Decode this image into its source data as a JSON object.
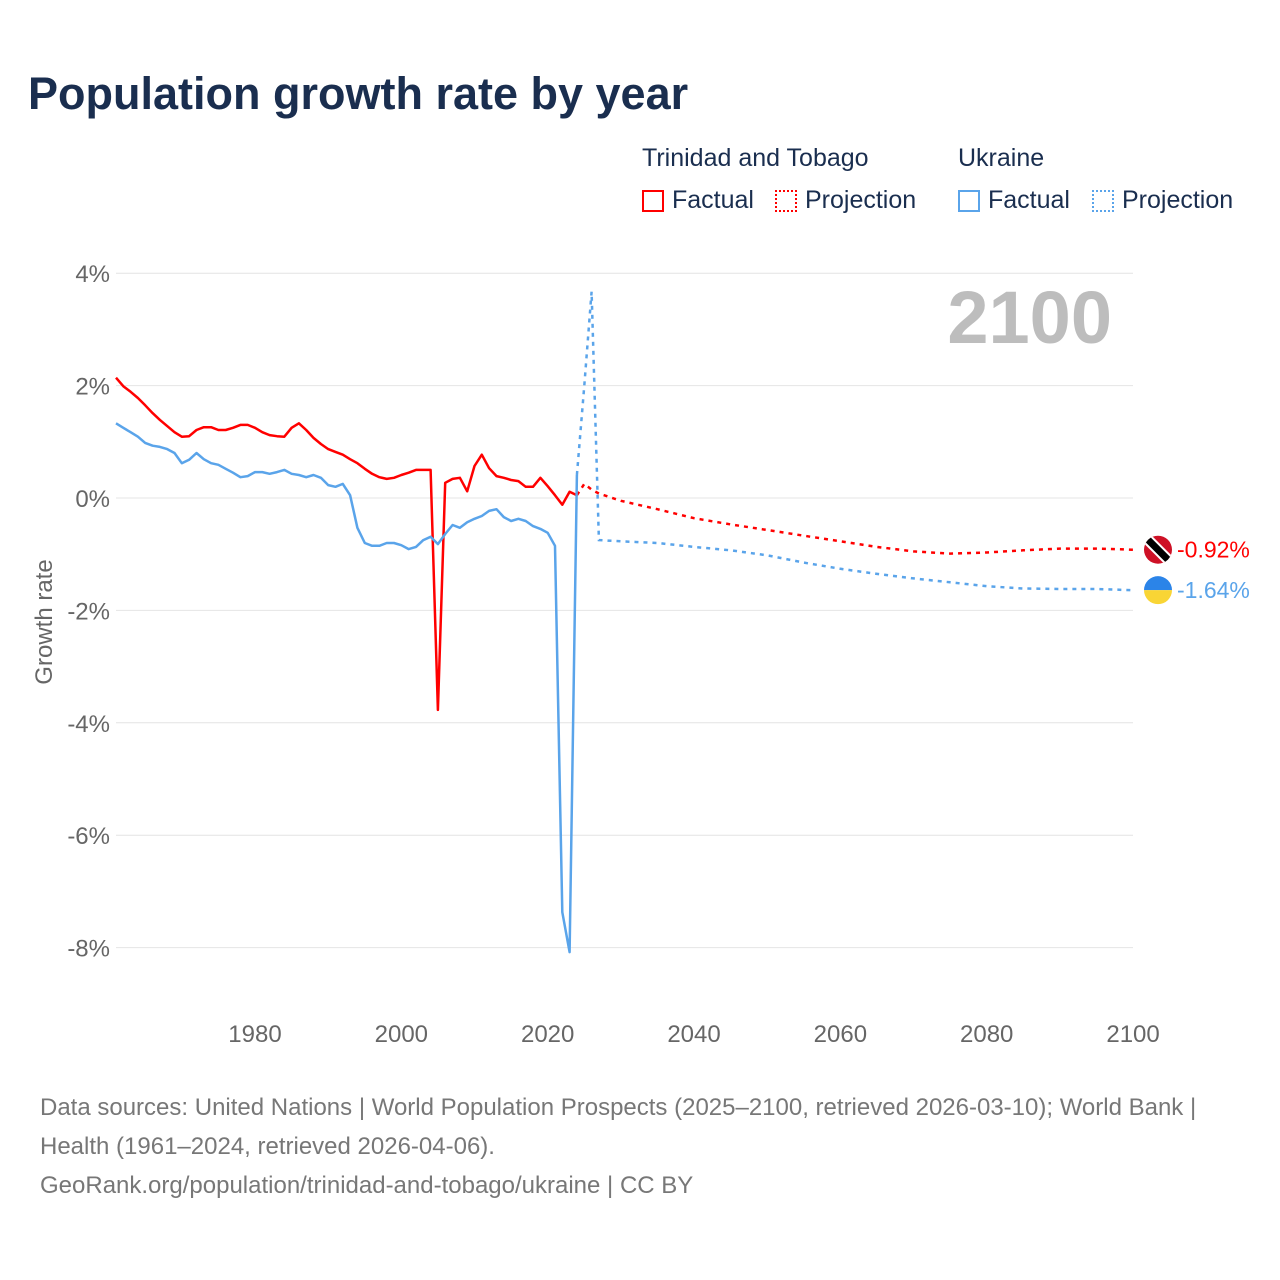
{
  "title": "Population growth rate by year",
  "legend": {
    "groups": [
      {
        "name": "Trinidad and Tobago",
        "color": "#ff0000",
        "factual": "Factual",
        "projection": "Projection"
      },
      {
        "name": "Ukraine",
        "color": "#5aa4ea",
        "factual": "Factual",
        "projection": "Projection"
      }
    ]
  },
  "chart_data": {
    "type": "line",
    "title": "Population growth rate by year",
    "xlabel": "",
    "ylabel": "Growth rate",
    "xlim": [
      1961,
      2100
    ],
    "ylim": [
      -9,
      4.4
    ],
    "x_ticks": [
      1980,
      2000,
      2020,
      2040,
      2060,
      2080,
      2100
    ],
    "y_ticks": [
      {
        "v": 4,
        "label": "4%"
      },
      {
        "v": 2,
        "label": "2%"
      },
      {
        "v": 0,
        "label": "0%"
      },
      {
        "v": -2,
        "label": "-2%"
      },
      {
        "v": -4,
        "label": "-4%"
      },
      {
        "v": -6,
        "label": "-6%"
      },
      {
        "v": -8,
        "label": "-8%"
      }
    ],
    "grid": true,
    "year_display": "2100",
    "series": [
      {
        "name": "Trinidad and Tobago",
        "color": "#ff0000",
        "end_label": "-0.92%",
        "factual": {
          "x": [
            1961,
            1962,
            1963,
            1964,
            1965,
            1966,
            1967,
            1968,
            1969,
            1970,
            1971,
            1972,
            1973,
            1974,
            1975,
            1976,
            1977,
            1978,
            1979,
            1980,
            1981,
            1982,
            1983,
            1984,
            1985,
            1986,
            1987,
            1988,
            1989,
            1990,
            1991,
            1992,
            1993,
            1994,
            1995,
            1996,
            1997,
            1998,
            1999,
            2000,
            2001,
            2002,
            2003,
            2004,
            2005,
            2006,
            2007,
            2008,
            2009,
            2010,
            2011,
            2012,
            2013,
            2014,
            2015,
            2016,
            2017,
            2018,
            2019,
            2020,
            2021,
            2022,
            2023,
            2024
          ],
          "y": [
            2.14,
            1.99,
            1.89,
            1.78,
            1.65,
            1.51,
            1.39,
            1.28,
            1.17,
            1.09,
            1.1,
            1.21,
            1.26,
            1.26,
            1.21,
            1.21,
            1.25,
            1.3,
            1.3,
            1.25,
            1.17,
            1.12,
            1.1,
            1.09,
            1.25,
            1.33,
            1.21,
            1.07,
            0.96,
            0.87,
            0.82,
            0.77,
            0.69,
            0.62,
            0.52,
            0.43,
            0.37,
            0.34,
            0.36,
            0.41,
            0.45,
            0.5,
            0.5,
            0.5,
            -3.77,
            0.27,
            0.34,
            0.36,
            0.12,
            0.57,
            0.77,
            0.53,
            0.39,
            0.36,
            0.32,
            0.3,
            0.2,
            0.2,
            0.36,
            0.21,
            0.05,
            -0.12,
            0.11,
            0.05
          ]
        },
        "projection": {
          "x": [
            2024,
            2025,
            2026,
            2027,
            2030,
            2035,
            2040,
            2045,
            2050,
            2055,
            2060,
            2065,
            2070,
            2075,
            2080,
            2085,
            2090,
            2095,
            2100
          ],
          "y": [
            0.05,
            0.25,
            0.15,
            0.08,
            -0.05,
            -0.2,
            -0.36,
            -0.47,
            -0.57,
            -0.67,
            -0.77,
            -0.87,
            -0.95,
            -0.99,
            -0.97,
            -0.93,
            -0.9,
            -0.9,
            -0.92
          ]
        }
      },
      {
        "name": "Ukraine",
        "color": "#5aa4ea",
        "end_label": "-1.64%",
        "factual": {
          "x": [
            1961,
            1962,
            1963,
            1964,
            1965,
            1966,
            1967,
            1968,
            1969,
            1970,
            1971,
            1972,
            1973,
            1974,
            1975,
            1976,
            1977,
            1978,
            1979,
            1980,
            1981,
            1982,
            1983,
            1984,
            1985,
            1986,
            1987,
            1988,
            1989,
            1990,
            1991,
            1992,
            1993,
            1994,
            1995,
            1996,
            1997,
            1998,
            1999,
            2000,
            2001,
            2002,
            2003,
            2004,
            2005,
            2006,
            2007,
            2008,
            2009,
            2010,
            2011,
            2012,
            2013,
            2014,
            2015,
            2016,
            2017,
            2018,
            2019,
            2020,
            2021,
            2022,
            2023,
            2024
          ],
          "y": [
            1.33,
            1.25,
            1.17,
            1.09,
            0.98,
            0.93,
            0.91,
            0.87,
            0.8,
            0.62,
            0.68,
            0.8,
            0.69,
            0.62,
            0.59,
            0.52,
            0.45,
            0.37,
            0.39,
            0.46,
            0.46,
            0.43,
            0.46,
            0.5,
            0.43,
            0.41,
            0.37,
            0.41,
            0.36,
            0.23,
            0.2,
            0.25,
            0.05,
            -0.53,
            -0.8,
            -0.85,
            -0.85,
            -0.8,
            -0.8,
            -0.84,
            -0.91,
            -0.87,
            -0.75,
            -0.69,
            -0.82,
            -0.64,
            -0.48,
            -0.53,
            -0.43,
            -0.37,
            -0.32,
            -0.23,
            -0.2,
            -0.34,
            -0.41,
            -0.37,
            -0.41,
            -0.5,
            -0.55,
            -0.62,
            -0.85,
            -7.37,
            -8.08,
            0.41
          ]
        },
        "projection": {
          "x": [
            2024,
            2025,
            2026,
            2027,
            2030,
            2035,
            2040,
            2045,
            2050,
            2055,
            2060,
            2065,
            2070,
            2075,
            2080,
            2085,
            2090,
            2095,
            2100
          ],
          "y": [
            0.41,
            2.0,
            3.67,
            -0.75,
            -0.77,
            -0.8,
            -0.87,
            -0.93,
            -1.02,
            -1.15,
            -1.26,
            -1.35,
            -1.43,
            -1.5,
            -1.57,
            -1.61,
            -1.62,
            -1.62,
            -1.64
          ]
        }
      }
    ]
  },
  "footer": {
    "sources": "Data sources: United Nations | World Population Prospects (2025–2100, retrieved 2026-03-10); World Bank | Health (1961–2024, retrieved 2026-04-06).",
    "credit": "GeoRank.org/population/trinidad-and-tobago/ukraine | CC BY"
  }
}
